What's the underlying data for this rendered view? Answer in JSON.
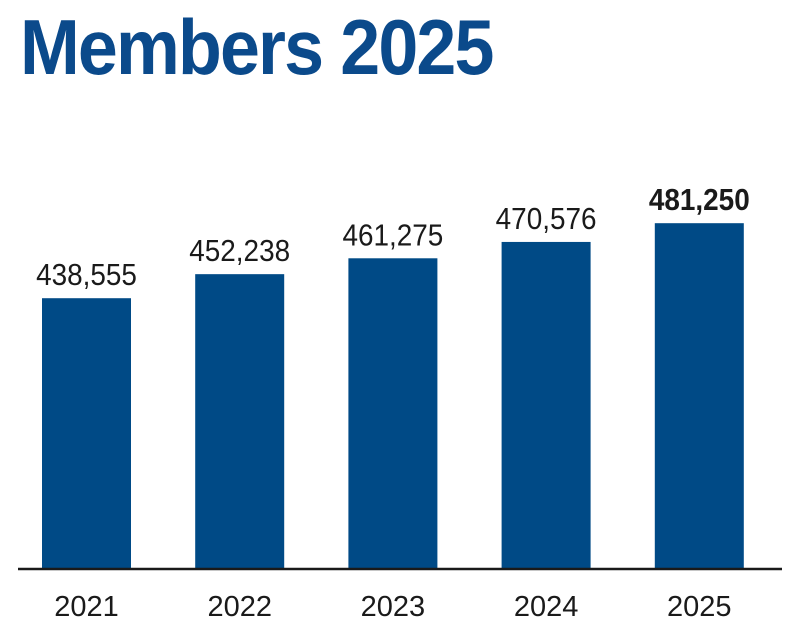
{
  "chart_data": {
    "type": "bar",
    "title": "Members 2025",
    "categories": [
      "2021",
      "2022",
      "2023",
      "2024",
      "2025"
    ],
    "values": [
      438555,
      452238,
      461275,
      470576,
      481250
    ],
    "value_labels": [
      "438,555",
      "452,238",
      "461,275",
      "470,576",
      "481,250"
    ],
    "highlight_index": 4,
    "ylim": [
      285000,
      500000
    ],
    "grid": false,
    "bar_color": "#004a86",
    "title_color": "#0b4a8b",
    "xlabel": "",
    "ylabel": ""
  }
}
